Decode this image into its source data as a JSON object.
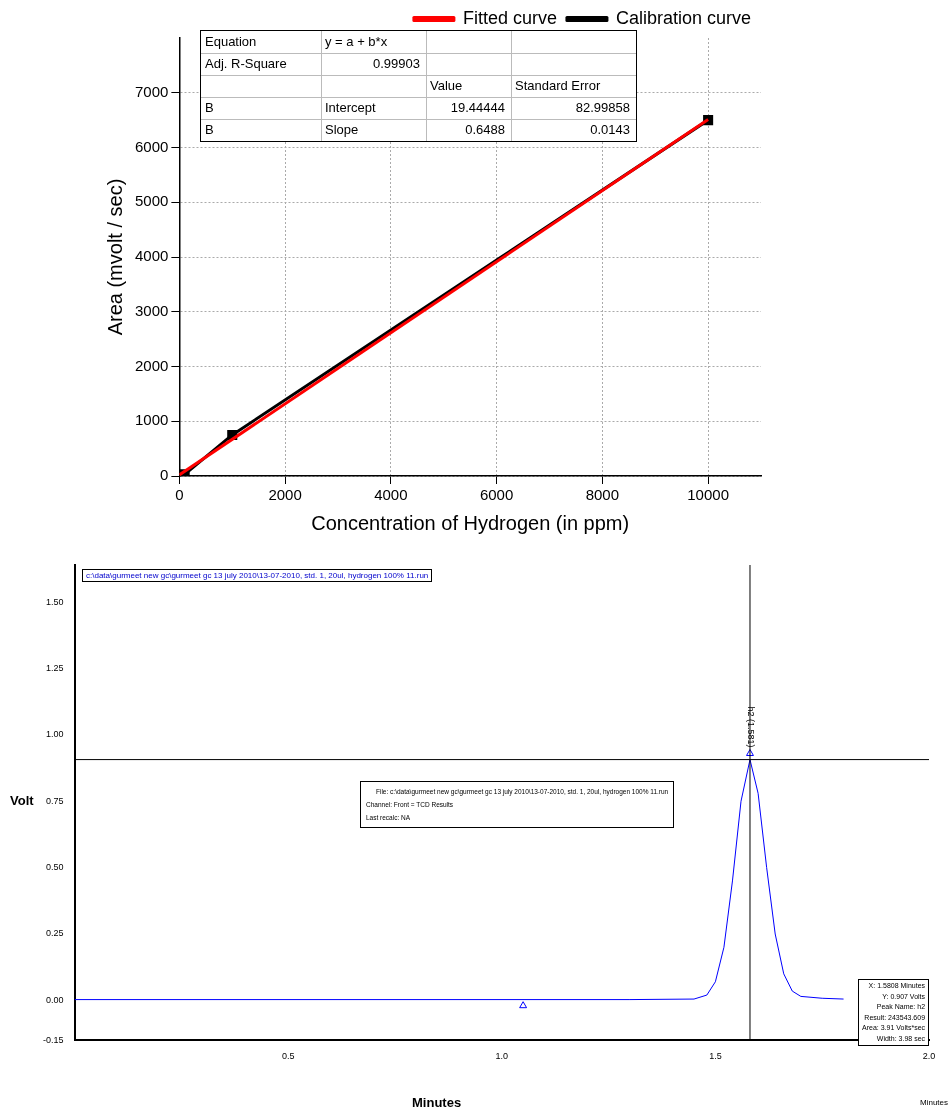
{
  "chart_data": [
    {
      "type": "line",
      "xlabel": "Concentration of Hydrogen (in ppm)",
      "ylabel": "Area (mvolt / sec)",
      "xlim": [
        0,
        11000
      ],
      "xticks": [
        0,
        2000,
        4000,
        6000,
        8000,
        10000
      ],
      "ylim": [
        0,
        8000
      ],
      "yticks": [
        0,
        1000,
        2000,
        3000,
        4000,
        5000,
        6000,
        7000
      ],
      "grid": true,
      "legend": "top right",
      "series": [
        {
          "name": "Calibration curve",
          "color": "#000000",
          "x": [
            100,
            1000,
            10000
          ],
          "values": [
            30,
            750,
            6500
          ],
          "marker": "square"
        },
        {
          "name": "Fitted curve",
          "color": "#ff0000",
          "x": [
            0,
            10000
          ],
          "values": [
            20,
            6510
          ],
          "marker": "none"
        }
      ],
      "annotations": [
        "Equation",
        "y = a + b*x",
        "Adj. R-Square",
        "0.99903",
        "Value",
        "Standard Error",
        "B",
        "Intercept",
        "19.44444",
        "82.99858",
        "B",
        "Slope",
        "0.6488",
        "0.0143"
      ]
    },
    {
      "type": "line",
      "xlabel": "Minutes",
      "ylabel": "Volt",
      "xlim": [
        0,
        2.0
      ],
      "xticks": [
        {
          "value": 0.5,
          "label": "0.5"
        },
        {
          "value": 1,
          "label": "1.0"
        },
        {
          "value": 1.5,
          "label": "1.5"
        },
        {
          "value": 2,
          "label": "2.0"
        }
      ],
      "ylim": [
        -0.15,
        1.64
      ],
      "yticks": [
        -0.15,
        {
          "value": 0,
          "label": "0.00"
        },
        0.25,
        {
          "value": 0.5,
          "label": "0.50"
        },
        0.75,
        {
          "value": 1,
          "label": "1.00"
        },
        1.25,
        {
          "value": 1.5,
          "label": "1.50"
        }
      ],
      "series": [
        {
          "color": "#0000ff",
          "x": [
            0,
            1.3,
            1.45,
            1.48,
            1.5,
            1.52,
            1.54,
            1.56,
            1.581,
            1.6,
            1.62,
            1.64,
            1.66,
            1.68,
            1.7,
            1.75,
            1.8
          ],
          "values": [
            0.003,
            0.003,
            0.005,
            0.02,
            0.07,
            0.2,
            0.45,
            0.75,
            0.907,
            0.78,
            0.5,
            0.25,
            0.1,
            0.035,
            0.015,
            0.008,
            0.005
          ],
          "marker": "none"
        },
        {
          "type": "scatter",
          "color": "#0000ff",
          "x": [
            1.05,
            1.581
          ],
          "values": [
            -0.02,
            0.93
          ],
          "marker": "triangle"
        }
      ],
      "ref_lines": [
        {
          "axis": "x",
          "value": 1.581,
          "color": "#000000"
        },
        {
          "axis": "y",
          "value": 0.907,
          "color": "#000000"
        }
      ],
      "annotations": [
        "c:\\data\\gurmeet new gc\\gurmeet gc 13 july 2010\\13-07-2010, std. 1, 20ul, hydrogen 100% 11.run",
        "File: c:\\data\\gurmeet new gc\\gurmeet gc 13 july 2010\\13-07-2010, std. 1, 20ul, hydrogen 100% 11.run",
        "Channel: Front = TCD  Results",
        "Last recalc: NA",
        "X: 1.5808 Minutes",
        "Y: 0.907 Volts",
        "Peak Name: h2",
        "Result: 243543.609",
        "Area: 3.91 Volts*sec",
        "Width: 3.98 sec",
        "Minutes",
        {
          "text": "h2 (1.581)",
          "x": 1.581,
          "y": 0.93
        }
      ]
    }
  ]
}
